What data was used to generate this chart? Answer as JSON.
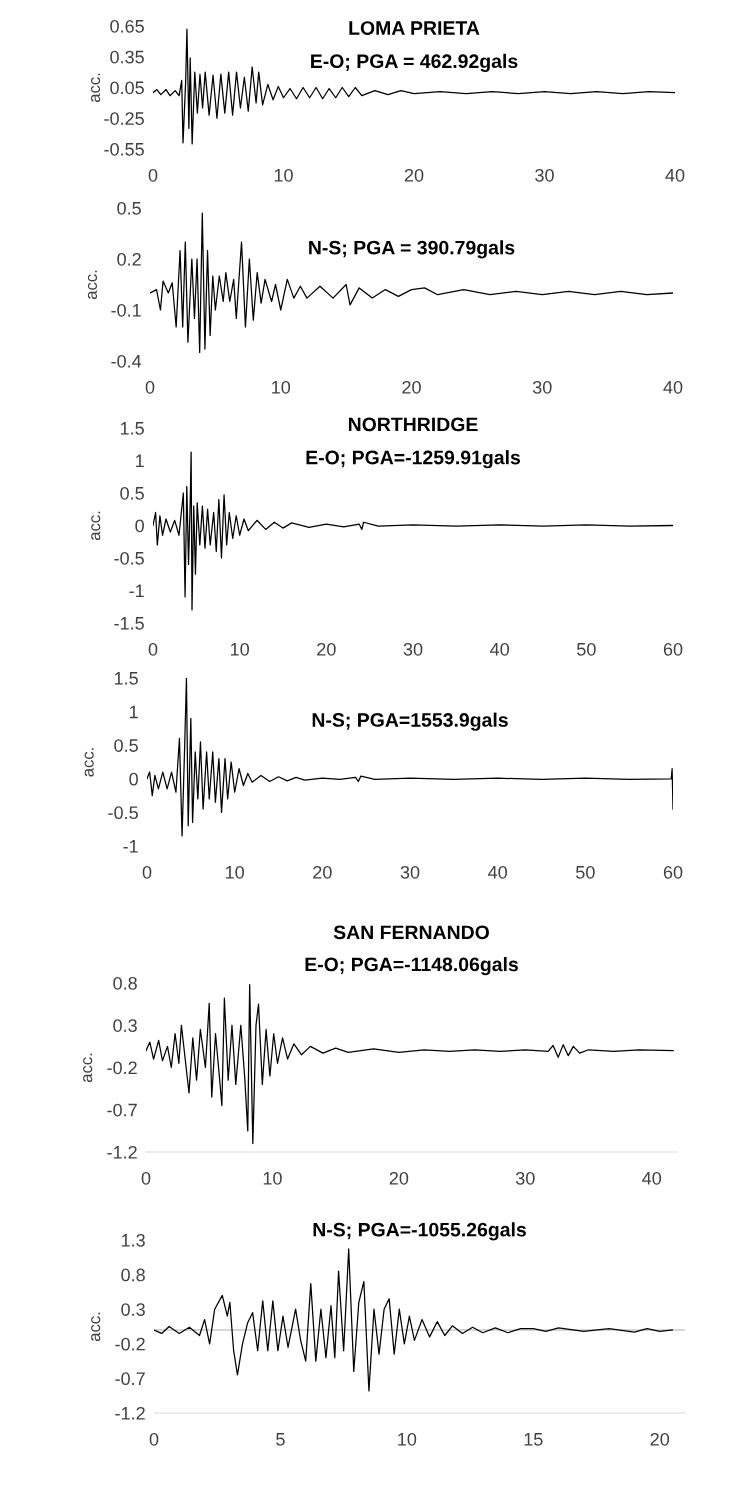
{
  "chart_data": [
    {
      "type": "line",
      "title": "LOMA PRIETA",
      "subtitle": "E-O; PGA = 462.92gals",
      "ylabel": "acc.",
      "xlim": [
        0,
        40
      ],
      "xticks": [
        0,
        10,
        20,
        30,
        40
      ],
      "ylim": [
        -0.55,
        0.65
      ],
      "yticks": [
        -0.55,
        -0.25,
        0.05,
        0.35,
        0.65
      ],
      "grid": false,
      "line_style": "solid",
      "marker": "none",
      "series": [
        {
          "color": "#000000",
          "x": [
            0,
            0.3,
            0.6,
            1.0,
            1.3,
            1.7,
            2.0,
            2.2,
            2.3,
            2.5,
            2.6,
            2.75,
            2.85,
            3.0,
            3.2,
            3.4,
            3.6,
            3.8,
            4.0,
            4.3,
            4.6,
            4.9,
            5.2,
            5.5,
            5.8,
            6.1,
            6.4,
            6.7,
            7.0,
            7.3,
            7.6,
            7.9,
            8.1,
            8.4,
            8.8,
            9.2,
            9.6,
            10,
            10.5,
            11,
            11.5,
            12,
            12.5,
            13,
            13.5,
            14,
            14.5,
            15,
            15.5,
            16,
            17,
            18,
            19,
            20,
            22,
            24,
            26,
            28,
            30,
            32,
            34,
            36,
            38,
            40
          ],
          "values": [
            0,
            0.03,
            -0.02,
            0.03,
            -0.03,
            0.02,
            -0.03,
            0.12,
            -0.49,
            0.1,
            0.62,
            -0.35,
            0.34,
            -0.5,
            0.2,
            -0.2,
            0.18,
            -0.15,
            0.2,
            -0.22,
            0.17,
            -0.25,
            0.18,
            -0.2,
            0.2,
            -0.22,
            0.2,
            -0.15,
            0.15,
            -0.18,
            0.25,
            -0.1,
            0.2,
            -0.12,
            0.08,
            -0.07,
            0.06,
            -0.05,
            0.04,
            -0.06,
            0.05,
            -0.05,
            0.05,
            -0.06,
            0.04,
            -0.05,
            0.05,
            -0.04,
            0.05,
            -0.03,
            0.02,
            -0.02,
            0.02,
            -0.01,
            0.01,
            -0.01,
            0.01,
            -0.01,
            0.01,
            -0.01,
            0.01,
            -0.01,
            0.01,
            0
          ]
        }
      ]
    },
    {
      "type": "line",
      "title": "N-S; PGA = 390.79gals",
      "ylabel": "acc.",
      "xlim": [
        0,
        40
      ],
      "xticks": [
        0,
        10,
        20,
        30,
        40
      ],
      "ylim": [
        -0.4,
        0.5
      ],
      "yticks": [
        -0.4,
        -0.1,
        0.2,
        0.5
      ],
      "grid": false,
      "line_style": "solid",
      "marker": "none",
      "series": [
        {
          "color": "#000000",
          "x": [
            0,
            0.5,
            0.8,
            1.0,
            1.4,
            1.7,
            2.0,
            2.3,
            2.5,
            2.7,
            2.9,
            3.2,
            3.4,
            3.6,
            3.8,
            4.0,
            4.2,
            4.4,
            4.6,
            4.8,
            5.0,
            5.3,
            5.6,
            5.8,
            6.1,
            6.4,
            6.6,
            7.0,
            7.3,
            7.6,
            7.9,
            8.2,
            8.5,
            8.8,
            9.3,
            9.6,
            10,
            10.5,
            11,
            11.5,
            12,
            13,
            14,
            15,
            15.3,
            16,
            17,
            18,
            19,
            20,
            21,
            22,
            24,
            26,
            28,
            30,
            32,
            34,
            36,
            38,
            40
          ],
          "values": [
            0,
            0.02,
            -0.1,
            0.07,
            0,
            0.06,
            -0.2,
            0.25,
            -0.2,
            0.3,
            -0.29,
            0.2,
            -0.15,
            0.2,
            -0.35,
            0.47,
            -0.33,
            0.25,
            -0.25,
            0.1,
            -0.1,
            0.1,
            -0.05,
            0.12,
            -0.05,
            0.08,
            -0.15,
            0.3,
            -0.2,
            0.2,
            -0.16,
            0.12,
            -0.06,
            0.08,
            -0.05,
            0.05,
            -0.1,
            0.08,
            -0.03,
            0.04,
            -0.03,
            0.04,
            -0.03,
            0.05,
            -0.07,
            0.03,
            -0.03,
            0.02,
            -0.02,
            0.02,
            0.03,
            -0.01,
            0.02,
            -0.01,
            0.01,
            -0.01,
            0.01,
            -0.01,
            0.01,
            -0.01,
            0
          ]
        }
      ]
    },
    {
      "type": "line",
      "title": "NORTHRIDGE",
      "subtitle": "E-O; PGA=-1259.91gals",
      "ylabel": "acc.",
      "xlim": [
        0,
        60
      ],
      "xticks": [
        0,
        10,
        20,
        30,
        40,
        50,
        60
      ],
      "ylim": [
        -1.5,
        1.5
      ],
      "yticks": [
        -1.5,
        -1,
        -0.5,
        0,
        0.5,
        1,
        1.5
      ],
      "grid": false,
      "line_style": "solid",
      "marker": "none",
      "series": [
        {
          "color": "#000000",
          "x": [
            0,
            0.3,
            0.5,
            0.8,
            1.1,
            1.5,
            2.0,
            2.5,
            3.0,
            3.5,
            3.7,
            3.9,
            4.1,
            4.3,
            4.4,
            4.5,
            4.7,
            4.9,
            5.1,
            5.4,
            5.7,
            6.0,
            6.3,
            6.6,
            7.0,
            7.3,
            7.6,
            7.9,
            8.2,
            8.5,
            8.8,
            9.2,
            9.6,
            10,
            10.5,
            11,
            12,
            13,
            14,
            15,
            16,
            18,
            20,
            22,
            23.8,
            24.1,
            24.3,
            26,
            30,
            35,
            40,
            45,
            50,
            55,
            60
          ],
          "values": [
            0,
            0.2,
            -0.3,
            0.15,
            -0.15,
            0.1,
            -0.1,
            0.08,
            -0.15,
            0.5,
            -1.1,
            0.6,
            -0.6,
            0.4,
            1.13,
            -1.3,
            0.3,
            -0.75,
            0.35,
            -0.3,
            0.3,
            -0.35,
            0.25,
            -0.3,
            0.2,
            -0.4,
            0.4,
            -0.5,
            0.47,
            -0.3,
            0.2,
            -0.2,
            0.15,
            -0.15,
            0.1,
            -0.08,
            0.08,
            -0.06,
            0.05,
            -0.04,
            0.04,
            -0.03,
            0.02,
            -0.02,
            0.02,
            -0.06,
            0.05,
            -0.01,
            0.01,
            -0.01,
            0.01,
            -0.01,
            0.01,
            -0.01,
            0
          ]
        }
      ]
    },
    {
      "type": "line",
      "title": "N-S; PGA=1553.9gals",
      "ylabel": "acc.",
      "xlim": [
        0,
        60
      ],
      "xticks": [
        0,
        10,
        20,
        30,
        40,
        50,
        60
      ],
      "ylim": [
        -1,
        1.5
      ],
      "yticks": [
        -1,
        -0.5,
        0,
        0.5,
        1,
        1.5
      ],
      "grid": false,
      "line_style": "solid",
      "marker": "none",
      "series": [
        {
          "color": "#000000",
          "x": [
            0,
            0.3,
            0.6,
            0.9,
            1.3,
            1.8,
            2.3,
            2.8,
            3.3,
            3.7,
            4.0,
            4.3,
            4.5,
            4.7,
            5.0,
            5.2,
            5.5,
            5.8,
            6.1,
            6.4,
            6.8,
            7.1,
            7.5,
            7.8,
            8.2,
            8.5,
            8.9,
            9.2,
            9.6,
            10,
            10.5,
            11,
            11.5,
            12,
            13,
            14,
            15,
            16,
            17,
            18,
            20,
            22,
            23.8,
            24.1,
            24.4,
            26,
            30,
            35,
            40,
            45,
            50,
            55,
            59.8,
            59.9,
            60
          ],
          "values": [
            0,
            0.1,
            -0.25,
            0.05,
            -0.15,
            0.1,
            -0.15,
            0.1,
            -0.2,
            0.6,
            -0.85,
            0.5,
            1.5,
            -0.7,
            0.9,
            -0.65,
            0.4,
            -0.3,
            0.55,
            -0.45,
            0.4,
            -0.3,
            0.4,
            -0.35,
            0.3,
            -0.5,
            0.3,
            -0.3,
            0.25,
            -0.2,
            0.15,
            -0.1,
            0.08,
            -0.05,
            0.05,
            -0.04,
            0.03,
            -0.03,
            0.02,
            -0.02,
            0.01,
            -0.01,
            0.02,
            -0.04,
            0.04,
            -0.01,
            0.01,
            -0.01,
            0.01,
            -0.01,
            0.01,
            -0.01,
            0,
            0.15,
            -0.45
          ]
        }
      ]
    },
    {
      "type": "line",
      "title": "SAN FERNANDO",
      "subtitle": "E-O; PGA=-1148.06gals",
      "ylabel": "acc.",
      "xlim": [
        0,
        42
      ],
      "xticks": [
        0,
        10,
        20,
        30,
        40
      ],
      "ylim": [
        -1.2,
        0.8
      ],
      "yticks": [
        -1.2,
        -0.7,
        -0.2,
        0.3,
        0.8
      ],
      "grid": false,
      "line_style": "solid",
      "marker": "none",
      "series": [
        {
          "color": "#000000",
          "x": [
            0,
            0.3,
            0.6,
            1.0,
            1.3,
            1.7,
            2.0,
            2.3,
            2.6,
            2.8,
            3.1,
            3.4,
            3.7,
            4.0,
            4.3,
            4.7,
            5.0,
            5.2,
            5.5,
            5.8,
            6.0,
            6.2,
            6.5,
            6.8,
            7.1,
            7.5,
            7.8,
            8.05,
            8.2,
            8.45,
            8.7,
            8.9,
            9.2,
            9.5,
            9.8,
            10.1,
            10.4,
            10.8,
            11.2,
            11.7,
            12.3,
            13,
            14,
            15,
            16,
            18,
            20,
            22,
            24,
            26,
            28,
            30,
            31.8,
            32.2,
            32.6,
            33.0,
            33.4,
            33.8,
            34.3,
            35,
            37,
            39,
            41.7
          ],
          "values": [
            0,
            0.1,
            -0.1,
            0.12,
            -0.12,
            0.05,
            -0.2,
            0.2,
            -0.15,
            0.3,
            -0.1,
            -0.5,
            0.15,
            -0.35,
            0.25,
            -0.2,
            0.56,
            -0.55,
            0.2,
            -0.3,
            -0.65,
            0.62,
            -0.35,
            0.3,
            -0.4,
            0.3,
            -0.3,
            -0.95,
            0.78,
            -1.1,
            0.3,
            0.55,
            -0.4,
            0.25,
            -0.3,
            0.2,
            -0.15,
            0.15,
            -0.1,
            0.08,
            -0.05,
            0.05,
            -0.03,
            0.03,
            -0.02,
            0.02,
            -0.02,
            0.01,
            -0.01,
            0.01,
            -0.01,
            0.01,
            -0.01,
            0.06,
            -0.08,
            0.07,
            -0.06,
            0.05,
            -0.03,
            0.01,
            -0.01,
            0.01,
            0
          ]
        }
      ]
    },
    {
      "type": "line",
      "title": "N-S; PGA=-1055.26gals",
      "ylabel": "acc.",
      "xlim": [
        0,
        21
      ],
      "xticks": [
        0,
        5,
        10,
        15,
        20
      ],
      "ylim": [
        -1.2,
        1.3
      ],
      "yticks": [
        -1.2,
        -0.7,
        -0.2,
        0.3,
        0.8,
        1.3
      ],
      "grid": false,
      "line_style": "solid",
      "marker": "none",
      "ref_lines": [
        {
          "axis": "y",
          "value": 0,
          "color": "#c8c8c8"
        }
      ],
      "series": [
        {
          "color": "#000000",
          "x": [
            0,
            0.3,
            0.6,
            1.0,
            1.4,
            1.8,
            2.0,
            2.2,
            2.4,
            2.7,
            2.9,
            3.0,
            3.15,
            3.3,
            3.5,
            3.7,
            3.9,
            4.1,
            4.3,
            4.5,
            4.7,
            4.9,
            5.1,
            5.3,
            5.6,
            5.8,
            6.0,
            6.2,
            6.4,
            6.6,
            6.8,
            7.0,
            7.15,
            7.3,
            7.5,
            7.7,
            7.9,
            8.1,
            8.3,
            8.5,
            8.7,
            8.9,
            9.1,
            9.3,
            9.5,
            9.7,
            9.9,
            10.1,
            10.3,
            10.6,
            10.9,
            11.2,
            11.5,
            11.8,
            12.2,
            12.6,
            13,
            13.5,
            14,
            14.5,
            15,
            15.5,
            16,
            17,
            18,
            19,
            19.5,
            20,
            20.5
          ],
          "values": [
            0,
            -0.05,
            0.05,
            -0.05,
            0.04,
            -0.08,
            0.15,
            -0.2,
            0.3,
            0.5,
            0.2,
            0.4,
            -0.3,
            -0.65,
            -0.2,
            0.1,
            0.25,
            -0.3,
            0.42,
            -0.3,
            0.42,
            -0.3,
            0.2,
            -0.25,
            0.3,
            -0.15,
            -0.45,
            0.67,
            -0.45,
            0.3,
            -0.4,
            0.35,
            -0.4,
            0.85,
            -0.3,
            1.17,
            -0.6,
            0.4,
            0.7,
            -0.88,
            0.3,
            -0.35,
            0.3,
            0.45,
            -0.35,
            0.3,
            -0.2,
            0.2,
            -0.15,
            0.15,
            -0.1,
            0.12,
            -0.08,
            0.06,
            -0.05,
            0.04,
            -0.04,
            0.03,
            -0.04,
            0.02,
            0.02,
            -0.02,
            0.03,
            -0.02,
            0.02,
            -0.03,
            0.02,
            -0.02,
            0
          ]
        }
      ]
    }
  ]
}
